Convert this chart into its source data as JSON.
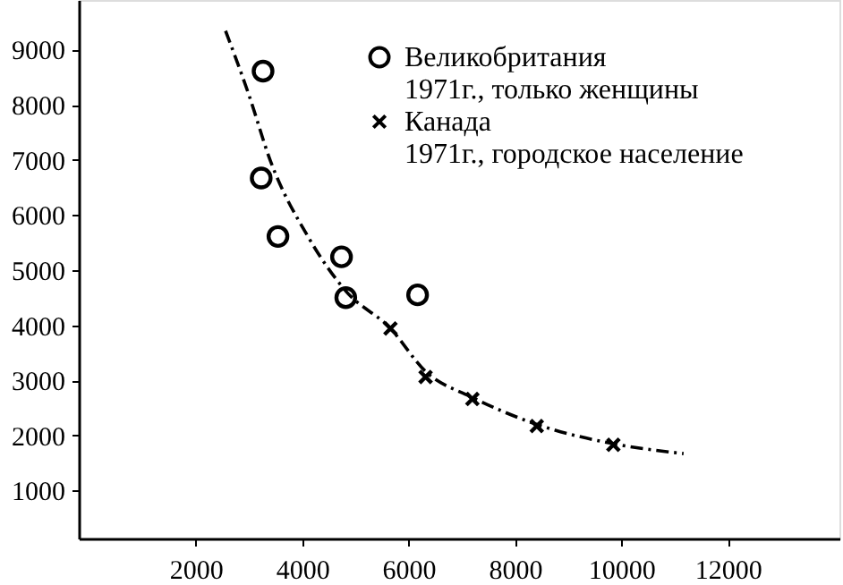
{
  "chart_data": {
    "type": "scatter",
    "xlim": [
      -200,
      14100
    ],
    "ylim": [
      130,
      9900
    ],
    "xticks": [
      2000,
      4000,
      6000,
      8000,
      10000,
      12000
    ],
    "yticks": [
      1000,
      2000,
      3000,
      4000,
      5000,
      6000,
      7000,
      8000,
      9000
    ],
    "grid": false,
    "legend": "top right",
    "series": [
      {
        "name": "Великобритания 1971г., только женщины",
        "color": "#000000",
        "marker": "circle",
        "x": [
          3265,
          3230,
          3545,
          4740,
          4820,
          6170
        ],
        "values": [
          8610,
          6670,
          5610,
          5240,
          4500,
          4550
        ]
      },
      {
        "name": "Канада 1971г., городское население",
        "color": "#000000",
        "marker": "cross",
        "x": [
          5660,
          6320,
          7200,
          8410,
          9850
        ],
        "values": [
          3940,
          3060,
          2660,
          2170,
          1830
        ]
      },
      {
        "type": "line",
        "color": "#000000",
        "line_style": "dashed",
        "marker": "none",
        "x": [
          2560,
          2998,
          3400,
          4120,
          4820,
          5660,
          6320,
          7200,
          8410,
          9850,
          11170
        ],
        "values": [
          9340,
          8180,
          6990,
          5590,
          4620,
          3940,
          3160,
          2690,
          2200,
          1850,
          1670
        ]
      }
    ]
  }
}
